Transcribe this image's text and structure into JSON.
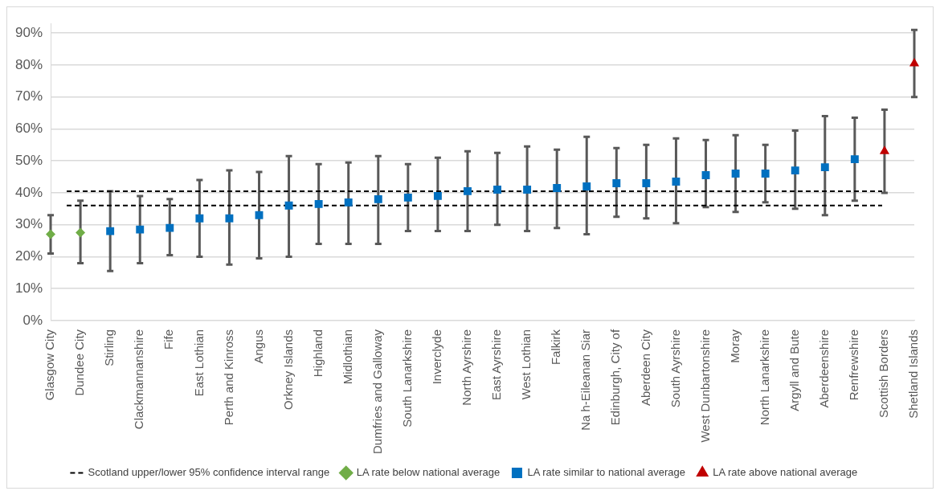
{
  "chart_data": {
    "type": "scatter",
    "categories": [
      "Glasgow City",
      "Dundee City",
      "Stirling",
      "Clackmannanshire",
      "Fife",
      "East Lothian",
      "Perth and Kinross",
      "Angus",
      "Orkney Islands",
      "Highland",
      "Midlothian",
      "Dumfries and Galloway",
      "South Lanarkshire",
      "Inverclyde",
      "North Ayrshire",
      "East Ayrshire",
      "West Lothian",
      "Falkirk",
      "Na h-Eileanan Siar",
      "Edinburgh, City of",
      "Aberdeen City",
      "South Ayrshire",
      "West Dunbartonshire",
      "Moray",
      "North Lanarkshire",
      "Argyll and Bute",
      "Aberdeenshire",
      "Renfrewshire",
      "Scottish Borders",
      "Shetland Islands"
    ],
    "series": [
      {
        "name": "LA rate below national average",
        "color": "#70ad47",
        "marker": "diamond",
        "values": [
          27,
          27.5,
          null,
          null,
          null,
          null,
          null,
          null,
          null,
          null,
          null,
          null,
          null,
          null,
          null,
          null,
          null,
          null,
          null,
          null,
          null,
          null,
          null,
          null,
          null,
          null,
          null,
          null,
          null,
          null
        ],
        "errors": [
          [
            21,
            33
          ],
          [
            18,
            37.5
          ],
          null,
          null,
          null,
          null,
          null,
          null,
          null,
          null,
          null,
          null,
          null,
          null,
          null,
          null,
          null,
          null,
          null,
          null,
          null,
          null,
          null,
          null,
          null,
          null,
          null,
          null,
          null,
          null
        ]
      },
      {
        "name": "LA rate similar to national average",
        "color": "#0070c0",
        "marker": "square",
        "values": [
          null,
          null,
          28,
          28.5,
          29,
          32,
          32,
          33,
          36,
          36.5,
          37,
          38,
          38.5,
          39,
          40.5,
          41,
          41,
          41.5,
          42,
          43,
          43,
          43.5,
          45.5,
          46,
          46,
          47,
          48,
          50.5,
          null,
          null
        ],
        "errors": [
          null,
          null,
          [
            15.5,
            40.5
          ],
          [
            18,
            39
          ],
          [
            20.5,
            38
          ],
          [
            20,
            44
          ],
          [
            17.5,
            47
          ],
          [
            19.5,
            46.5
          ],
          [
            20,
            51.5
          ],
          [
            24,
            49
          ],
          [
            24,
            49.5
          ],
          [
            24,
            51.5
          ],
          [
            28,
            49
          ],
          [
            28,
            51
          ],
          [
            28,
            53
          ],
          [
            30,
            52.5
          ],
          [
            28,
            54.5
          ],
          [
            29,
            53.5
          ],
          [
            27,
            57.5
          ],
          [
            32.5,
            54
          ],
          [
            32,
            55
          ],
          [
            30.5,
            57
          ],
          [
            35.5,
            56.5
          ],
          [
            34,
            58
          ],
          [
            37,
            55
          ],
          [
            35,
            59.5
          ],
          [
            33,
            64
          ],
          [
            37.5,
            63.5
          ],
          null,
          null
        ]
      },
      {
        "name": "LA rate above national average",
        "color": "#c00000",
        "marker": "triangle",
        "values": [
          null,
          null,
          null,
          null,
          null,
          null,
          null,
          null,
          null,
          null,
          null,
          null,
          null,
          null,
          null,
          null,
          null,
          null,
          null,
          null,
          null,
          null,
          null,
          null,
          null,
          null,
          null,
          null,
          53,
          80.5
        ],
        "errors": [
          null,
          null,
          null,
          null,
          null,
          null,
          null,
          null,
          null,
          null,
          null,
          null,
          null,
          null,
          null,
          null,
          null,
          null,
          null,
          null,
          null,
          null,
          null,
          null,
          null,
          null,
          null,
          null,
          [
            40,
            66
          ],
          [
            70,
            91
          ]
        ]
      }
    ],
    "ref_lines": [
      {
        "axis": "y",
        "value": 40.5,
        "label": "Scotland upper/lower 95% confidence interval range",
        "color": "#000000",
        "line_style": "dashed"
      },
      {
        "axis": "y",
        "value": 36,
        "label": null,
        "color": "#000000",
        "line_style": "dashed"
      }
    ],
    "ylim": [
      0,
      93
    ],
    "yticks": [
      {
        "value": 0,
        "label": "0%"
      },
      {
        "value": 10,
        "label": "10%"
      },
      {
        "value": 20,
        "label": "20%"
      },
      {
        "value": 30,
        "label": "30%"
      },
      {
        "value": 40,
        "label": "40%"
      },
      {
        "value": 50,
        "label": "50%"
      },
      {
        "value": 60,
        "label": "60%"
      },
      {
        "value": 70,
        "label": "70%"
      },
      {
        "value": 80,
        "label": "80%"
      },
      {
        "value": 90,
        "label": "90%"
      }
    ],
    "grid": "y",
    "legend": "bottom"
  }
}
